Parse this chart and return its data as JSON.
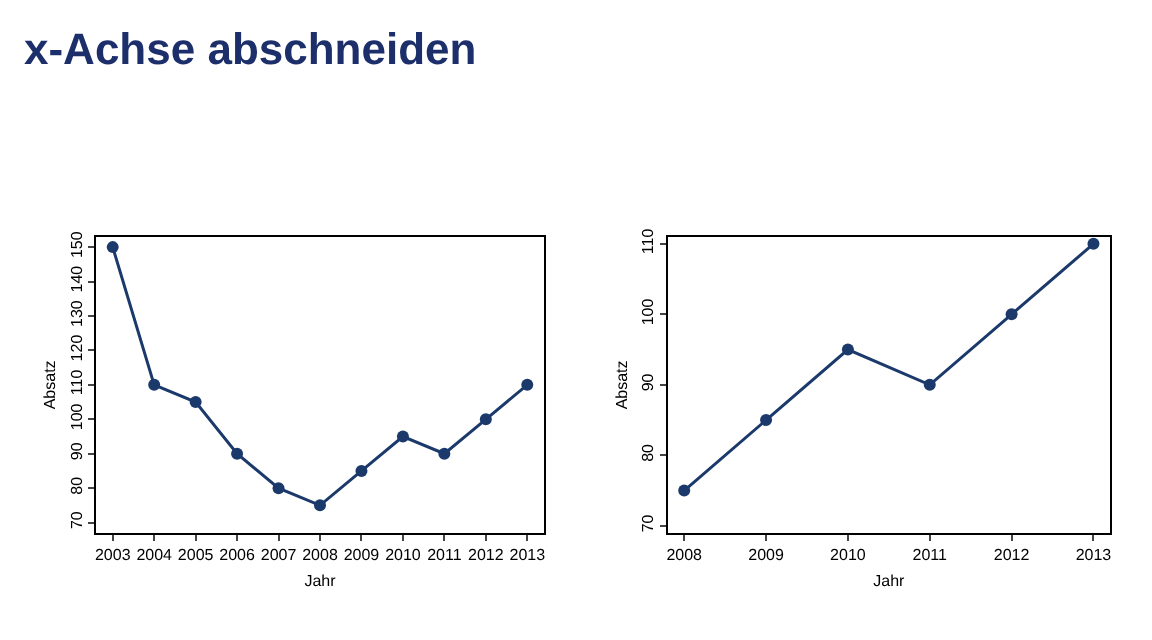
{
  "chart_data": [
    {
      "type": "line",
      "title": "x-Achse abschneiden",
      "xlabel": "Jahr",
      "ylabel": "Absatz",
      "x": [
        2003,
        2004,
        2005,
        2006,
        2007,
        2008,
        2009,
        2010,
        2011,
        2012,
        2013
      ],
      "series": [
        {
          "color": "#1b3a6b",
          "values": [
            150,
            110,
            105,
            90,
            80,
            75,
            85,
            95,
            90,
            100,
            110
          ]
        }
      ],
      "xlim": [
        2002.6,
        2013.4
      ],
      "xticks": [
        2003,
        2004,
        2005,
        2006,
        2007,
        2008,
        2009,
        2010,
        2011,
        2012,
        2013
      ],
      "ylim": [
        67,
        153
      ],
      "yticks": [
        70,
        80,
        90,
        100,
        110,
        120,
        130,
        140,
        150
      ],
      "marker": "circle"
    },
    {
      "type": "line",
      "xlabel": "Jahr",
      "ylabel": "Absatz",
      "x": [
        2008,
        2009,
        2010,
        2011,
        2012,
        2013
      ],
      "series": [
        {
          "color": "#1b3a6b",
          "values": [
            75,
            85,
            95,
            90,
            100,
            110
          ]
        }
      ],
      "xlim": [
        2007.8,
        2013.2
      ],
      "xticks": [
        2008,
        2009,
        2010,
        2011,
        2012,
        2013
      ],
      "ylim": [
        69,
        111
      ],
      "yticks": [
        70,
        80,
        90,
        100,
        110
      ],
      "marker": "circle"
    }
  ]
}
